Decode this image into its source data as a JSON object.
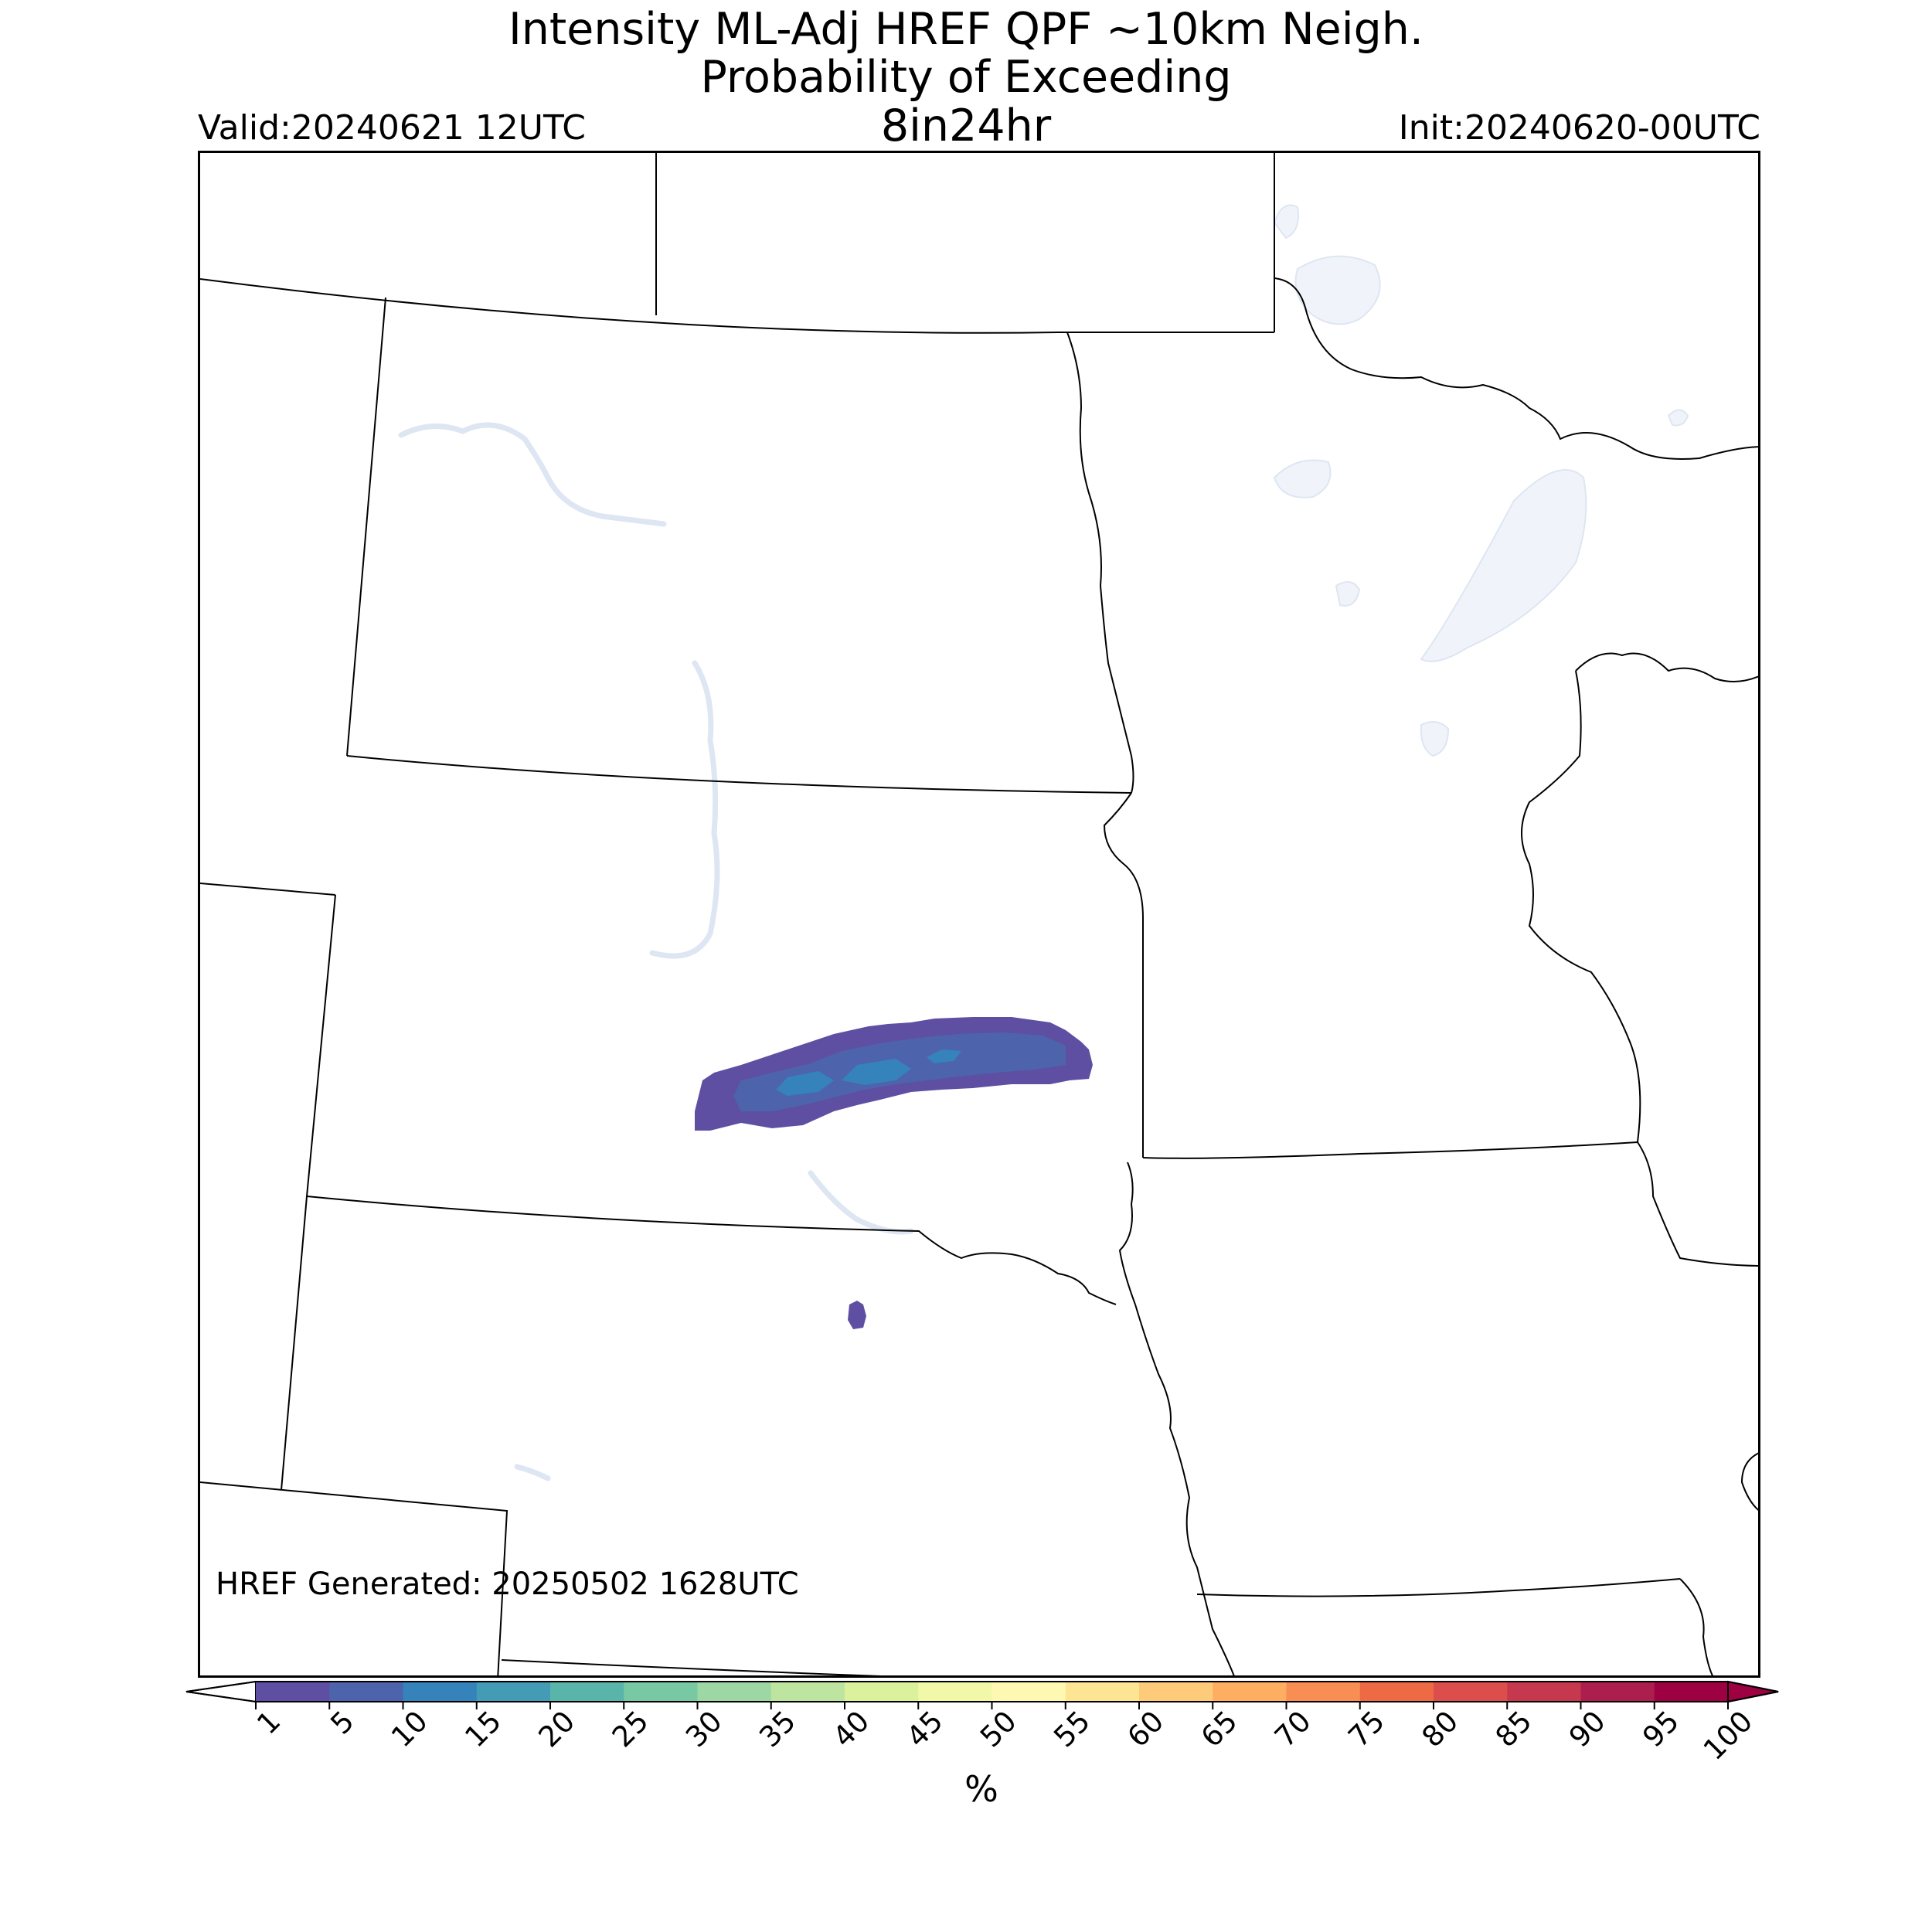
{
  "title": {
    "line1": "Intensity ML-Adj HREF QPF ~10km Neigh.",
    "line2": "Probability of Exceeding",
    "line3": "8in24hr"
  },
  "valid": "Valid:20240621 12UTC",
  "init": "Init:20240620-00UTC",
  "generated": "HREF Generated: 20250502 1628UTC",
  "colorbar": {
    "unit": "%",
    "ticks": [
      "1",
      "5",
      "10",
      "15",
      "20",
      "25",
      "30",
      "35",
      "40",
      "45",
      "50",
      "55",
      "60",
      "65",
      "70",
      "75",
      "80",
      "85",
      "90",
      "95",
      "100"
    ],
    "colors": [
      "#5e4fa2",
      "#4d64ad",
      "#3682ba",
      "#439bb5",
      "#59b4aa",
      "#79c8a4",
      "#9dd7a4",
      "#bee5a0",
      "#dbf19c",
      "#f1f9a9",
      "#fef8b3",
      "#fee593",
      "#fdcb7a",
      "#fdae61",
      "#f88e53",
      "#ed6a45",
      "#dc4e4b",
      "#c6384d",
      "#ac1e4d",
      "#9e0142"
    ],
    "extend": "both"
  },
  "map": {
    "water_color": "#f0f4fa",
    "border_color": "#000000",
    "probability_regions": [
      {
        "name": "central South Dakota band",
        "levels": [
          "1-5%",
          "5-10%",
          "10-15%"
        ]
      },
      {
        "name": "north-central Nebraska spot",
        "levels": [
          "1-5%"
        ]
      }
    ]
  }
}
